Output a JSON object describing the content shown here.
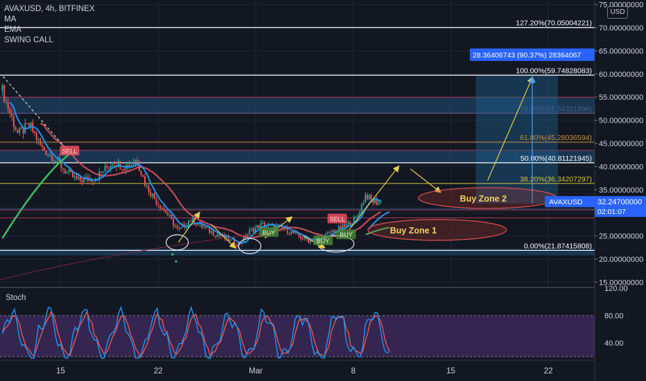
{
  "header": {
    "symbol_line": "AVAXUSD, 4h, BITFINEX",
    "indicators": [
      "MA",
      "EMA",
      "SWING CALL"
    ],
    "currency_button": "USD"
  },
  "stoch_panel": {
    "title": "Stoch"
  },
  "chart_data": [
    {
      "type": "candlestick",
      "series_name": "AVAXUSD",
      "x_ticks": [
        "15",
        "22",
        "Mar",
        "8",
        "15",
        "22"
      ],
      "y_ticks": [
        "15.00000000",
        "20.00000000",
        "25.00000000",
        "30.00000000",
        "35.00000000",
        "40.00000000",
        "45.00000000",
        "50.00000000",
        "55.00000000",
        "60.00000000",
        "65.00000000",
        "70.00000000",
        "75.00000000"
      ],
      "ylim": [
        14,
        76
      ],
      "last_price": {
        "label": "AVAXUSD",
        "value": "32.24700000",
        "countdown": "02:01:07"
      },
      "fib_levels": [
        {
          "label": "127.20%(70.05004221)",
          "price": 70.05,
          "color": "#ffffff"
        },
        {
          "label": "100.00%(59.74828083)",
          "price": 59.75,
          "color": "#ffffff"
        },
        {
          "label": "78.60%(51.54321896)",
          "price": 51.54,
          "color": "#4c5b8c"
        },
        {
          "label": "61.80%(45.28036594)",
          "price": 45.28,
          "color": "#d18a3a"
        },
        {
          "label": "50.00%(40.81121945)",
          "price": 40.81,
          "color": "#ffffff"
        },
        {
          "label": "38.20%(36.34207297)",
          "price": 36.34,
          "color": "#d4c93c"
        },
        {
          "label": "0.00%(21.87415808)",
          "price": 21.87,
          "color": "#ffffff"
        }
      ],
      "measure_label": "28.36406743 (90.37%) 28364067",
      "zones": [
        {
          "label": "Buy Zone 2",
          "price": 33.2
        },
        {
          "label": "Buy Zone 1",
          "price": 26.3
        }
      ],
      "signals": [
        {
          "label": "SELL",
          "type": "sell",
          "x": 0.117,
          "price": 43.3
        },
        {
          "label": "SELL",
          "type": "sell",
          "x": 0.567,
          "price": 28.6
        },
        {
          "label": "BUY",
          "type": "buy",
          "x": 0.452,
          "price": 25.7
        },
        {
          "label": "BUY",
          "type": "buy",
          "x": 0.543,
          "price": 23.9
        },
        {
          "label": "BUY",
          "type": "buy",
          "x": 0.582,
          "price": 25.2
        }
      ],
      "colors": {
        "up": "#26a69a",
        "down": "#ef5350",
        "ma": "#e25563",
        "ema": "#2196f3",
        "swing": "#3ac163"
      }
    },
    {
      "type": "line",
      "name": "Stoch",
      "y_ticks": [
        "40.00",
        "80.00",
        "120.00"
      ],
      "ylim": [
        15,
        120
      ],
      "bands": [
        20,
        80
      ],
      "colors": {
        "k": "#2196f3",
        "d": "#ef5350",
        "band_fill": "#3d2a5c"
      }
    }
  ]
}
